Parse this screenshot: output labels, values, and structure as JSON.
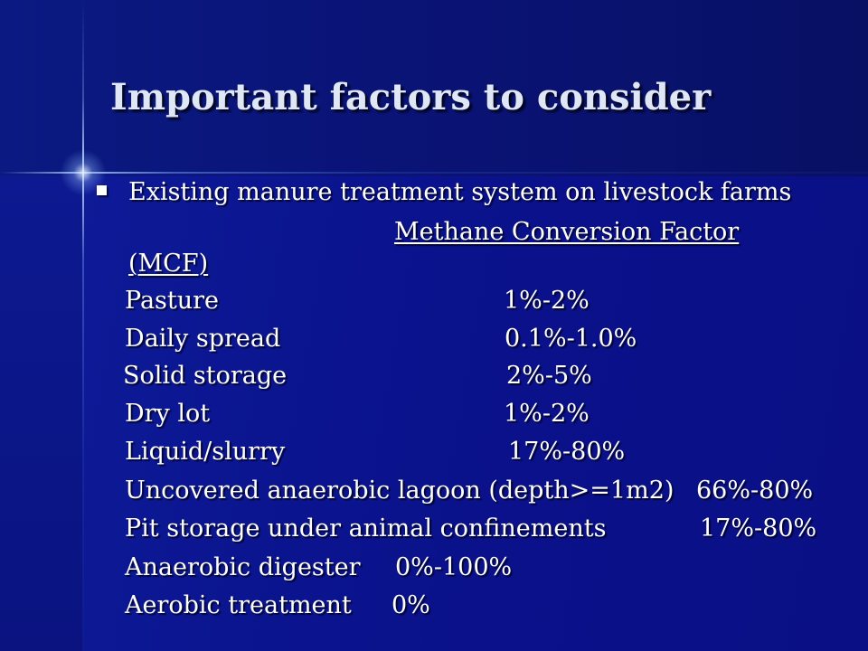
{
  "slide": {
    "title": "Important factors to consider",
    "bullet_text": "Existing manure treatment system on livestock farms",
    "column_header_line1": "Methane Conversion Factor",
    "column_header_line2": "(MCF)",
    "rows": [
      {
        "system": "Pasture",
        "mcf": "1%-2%"
      },
      {
        "system": "Daily spread",
        "mcf": "0.1%-1.0%"
      },
      {
        "system": "Solid storage",
        "mcf": "2%-5%"
      },
      {
        "system": "Dry lot",
        "mcf": "1%-2%"
      },
      {
        "system": "Liquid/slurry",
        "mcf": "17%-80%"
      },
      {
        "system": "Uncovered anaerobic lagoon (depth>=1m2)",
        "mcf": "66%-80%"
      },
      {
        "system": "Pit storage under animal confinements",
        "mcf": "17%-80%"
      },
      {
        "system": "Anaerobic digester",
        "mcf": "0%-100%"
      },
      {
        "system": "Aerobic treatment",
        "mcf": "0%"
      }
    ]
  },
  "colors": {
    "background": "#0b1590",
    "header_band": "#0a1478",
    "text": "#ffffff",
    "title_text": "#dfe6f5"
  }
}
